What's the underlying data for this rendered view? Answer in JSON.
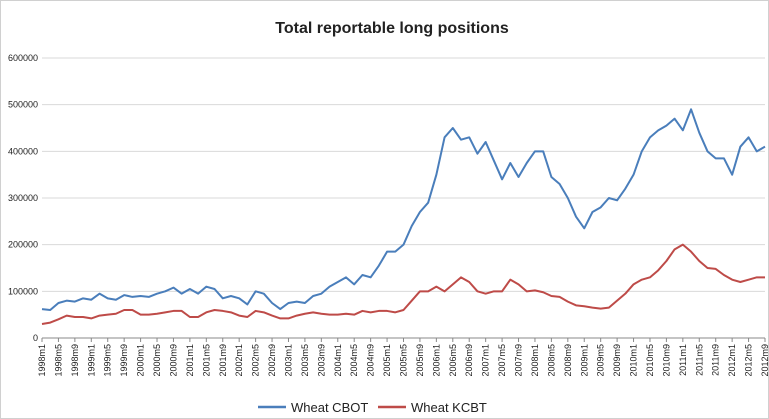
{
  "chart_data": {
    "type": "line",
    "title": "Total reportable long positions",
    "categories": [
      "1998m1",
      null,
      "1998m5",
      null,
      "1998m9",
      null,
      "1999m1",
      null,
      "1999m5",
      null,
      "1999m9",
      null,
      "2000m1",
      null,
      "2000m5",
      null,
      "2000m9",
      null,
      "2001m1",
      null,
      "2001m5",
      null,
      "2001m9",
      null,
      "2002m1",
      null,
      "2002m5",
      null,
      "2002m9",
      null,
      "2003m1",
      null,
      "2003m5",
      null,
      "2003m9",
      null,
      "2004m1",
      null,
      "2004m5",
      null,
      "2004m9",
      null,
      "2005m1",
      null,
      "2005m5",
      null,
      "2005m9",
      null,
      "2006m1",
      null,
      "2006m5",
      null,
      "2006m9",
      null,
      "2007m1",
      null,
      "2007m5",
      null,
      "2007m9",
      null,
      "2008m1",
      null,
      "2008m5",
      null,
      "2008m9",
      null,
      "2009m1",
      null,
      "2009m5",
      null,
      "2009m9",
      null,
      "2010m1",
      null,
      "2010m5",
      null,
      "2010m9",
      null,
      "2011m1",
      null,
      "2011m5",
      null,
      "2011m9",
      null,
      "2012m1",
      null,
      "2012m5",
      null,
      "2012m9"
    ],
    "series": [
      {
        "name": "Wheat CBOT",
        "color": "#4a7ebb",
        "values": [
          62000,
          60000,
          75000,
          80000,
          78000,
          85000,
          82000,
          95000,
          85000,
          82000,
          92000,
          88000,
          90000,
          88000,
          95000,
          100000,
          108000,
          95000,
          105000,
          95000,
          110000,
          105000,
          85000,
          90000,
          85000,
          72000,
          100000,
          95000,
          75000,
          62000,
          75000,
          78000,
          75000,
          90000,
          95000,
          110000,
          120000,
          130000,
          115000,
          135000,
          130000,
          155000,
          185000,
          185000,
          200000,
          240000,
          270000,
          290000,
          350000,
          430000,
          450000,
          425000,
          430000,
          395000,
          420000,
          380000,
          340000,
          375000,
          345000,
          375000,
          400000,
          400000,
          345000,
          330000,
          300000,
          260000,
          235000,
          270000,
          280000,
          300000,
          295000,
          320000,
          350000,
          400000,
          430000,
          445000,
          455000,
          470000,
          445000,
          490000,
          440000,
          400000,
          385000,
          385000,
          350000,
          410000,
          430000,
          400000,
          410000
        ]
      },
      {
        "name": "Wheat KCBT",
        "color": "#be4b48",
        "values": [
          30000,
          33000,
          40000,
          48000,
          45000,
          45000,
          42000,
          48000,
          50000,
          52000,
          60000,
          60000,
          50000,
          50000,
          52000,
          55000,
          58000,
          58000,
          45000,
          45000,
          55000,
          60000,
          58000,
          55000,
          48000,
          45000,
          58000,
          55000,
          48000,
          42000,
          42000,
          48000,
          52000,
          55000,
          52000,
          50000,
          50000,
          52000,
          50000,
          58000,
          55000,
          58000,
          58000,
          55000,
          60000,
          80000,
          100000,
          100000,
          110000,
          100000,
          115000,
          130000,
          120000,
          100000,
          95000,
          100000,
          100000,
          125000,
          115000,
          100000,
          102000,
          98000,
          90000,
          88000,
          78000,
          70000,
          68000,
          65000,
          63000,
          65000,
          80000,
          95000,
          115000,
          125000,
          130000,
          145000,
          165000,
          190000,
          200000,
          185000,
          165000,
          150000,
          148000,
          135000,
          125000,
          120000,
          125000,
          130000,
          130000
        ]
      }
    ],
    "ylim": [
      0,
      600000
    ],
    "yticks": [
      0,
      100000,
      200000,
      300000,
      400000,
      500000,
      600000
    ],
    "grid": true,
    "legend": "bottom"
  }
}
